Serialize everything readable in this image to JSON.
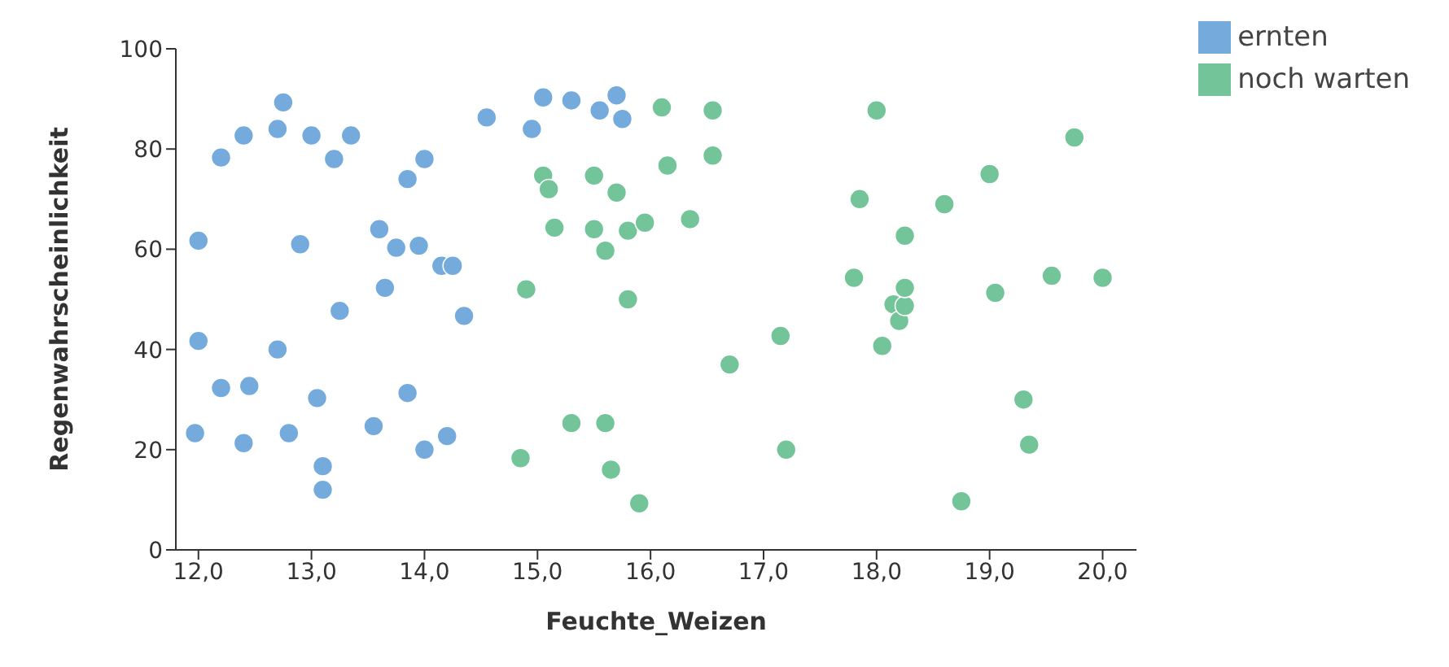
{
  "chart_data": {
    "type": "scatter",
    "xlabel": "Feuchte_Weizen",
    "ylabel": "Regenwahrscheinlichkeit",
    "xlim": [
      11.8,
      20.3
    ],
    "xticks": [
      {
        "value": 12,
        "label": "12,0"
      },
      {
        "value": 13,
        "label": "13,0"
      },
      {
        "value": 14,
        "label": "14,0"
      },
      {
        "value": 15,
        "label": "15,0"
      },
      {
        "value": 16,
        "label": "16,0"
      },
      {
        "value": 17,
        "label": "17,0"
      },
      {
        "value": 18,
        "label": "18,0"
      },
      {
        "value": 19,
        "label": "19,0"
      },
      {
        "value": 20,
        "label": "20,0"
      }
    ],
    "ylim": [
      0,
      100
    ],
    "yticks": [
      0,
      20,
      40,
      60,
      80,
      100
    ],
    "grid": false,
    "legend": "top right",
    "marker": "circle",
    "series": [
      {
        "name": "ernten",
        "color": "#74aadc",
        "x": [
          11.97,
          12.0,
          12.0,
          12.2,
          12.2,
          12.4,
          12.4,
          12.45,
          12.7,
          12.75,
          12.7,
          12.8,
          12.9,
          13.0,
          13.05,
          13.2,
          13.1,
          13.1,
          13.25,
          13.35,
          13.55,
          13.6,
          13.65,
          13.75,
          13.85,
          13.85,
          14.0,
          13.95,
          14.0,
          14.15,
          14.25,
          14.2,
          14.35,
          14.55,
          14.95,
          15.05,
          15.3,
          15.55,
          15.7,
          15.75
        ],
        "values": [
          23.3,
          41.7,
          61.7,
          78.3,
          32.3,
          82.7,
          21.3,
          32.7,
          40,
          89.3,
          84,
          23.3,
          61,
          82.7,
          30.3,
          78,
          16.7,
          12,
          47.7,
          82.7,
          24.7,
          64,
          52.3,
          60.3,
          74,
          31.3,
          78,
          60.7,
          20,
          56.7,
          56.7,
          22.7,
          46.7,
          86.3,
          84,
          90.3,
          89.7,
          87.7,
          90.7,
          86
        ]
      },
      {
        "name": "noch warten",
        "color": "#74c49a",
        "x": [
          14.9,
          14.85,
          15.05,
          15.1,
          15.15,
          15.3,
          15.5,
          15.5,
          15.6,
          15.6,
          15.65,
          15.7,
          15.8,
          15.8,
          15.95,
          15.9,
          16.1,
          16.15,
          16.35,
          16.55,
          16.55,
          16.7,
          17.15,
          17.2,
          17.85,
          17.8,
          18.0,
          18.05,
          18.15,
          18.2,
          18.25,
          18.25,
          18.25,
          18.6,
          18.75,
          19.0,
          19.05,
          19.3,
          19.35,
          19.55,
          19.75,
          20.0
        ],
        "values": [
          52,
          18.3,
          74.7,
          72,
          64.3,
          25.3,
          74.7,
          64,
          59.7,
          25.3,
          16,
          71.3,
          50,
          63.7,
          65.3,
          9.3,
          88.3,
          76.7,
          66,
          87.7,
          78.7,
          37,
          42.7,
          20,
          70,
          54.3,
          87.7,
          40.7,
          49,
          45.7,
          48.7,
          62.7,
          52.3,
          69,
          9.7,
          75,
          51.3,
          30,
          21,
          54.7,
          82.3,
          54.3
        ]
      }
    ]
  }
}
